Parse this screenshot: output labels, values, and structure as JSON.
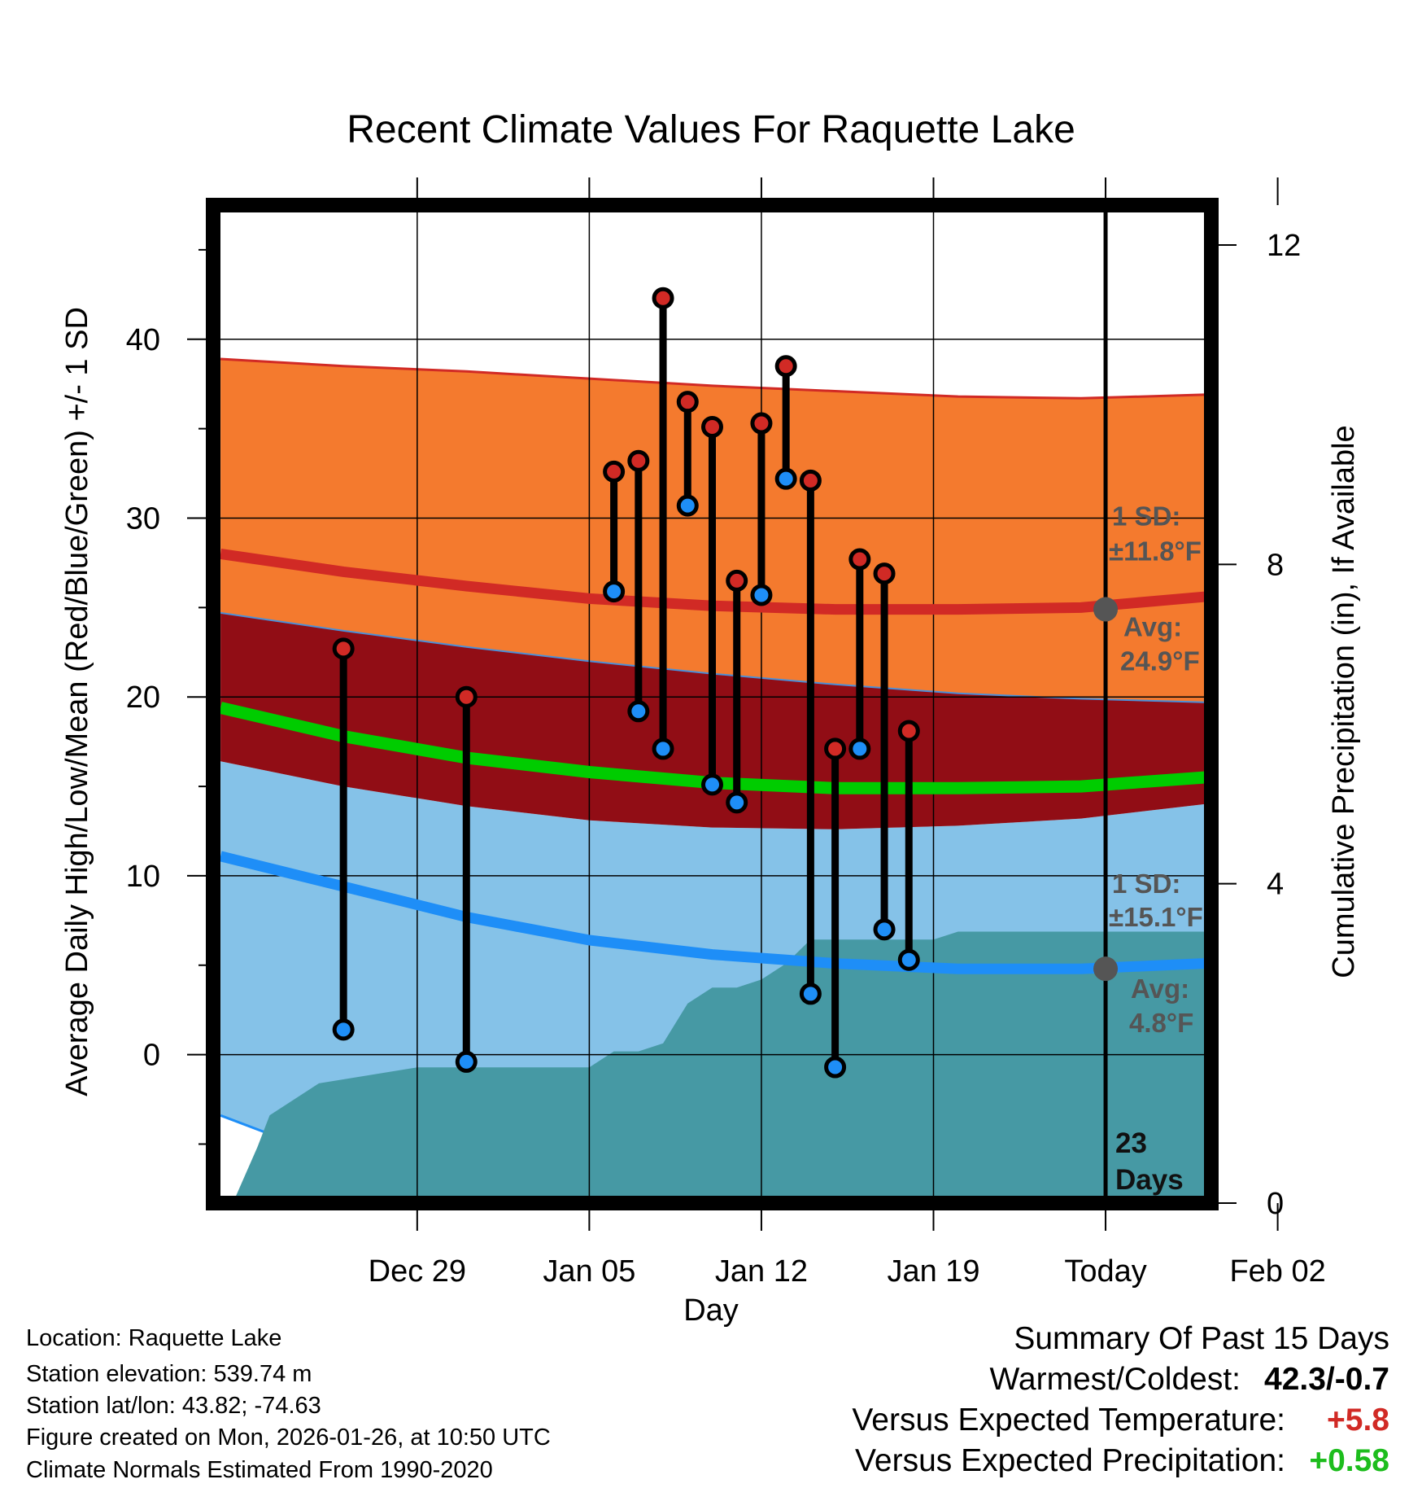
{
  "chart_data": {
    "type": "line",
    "title": "Recent Climate Values For Raquette Lake",
    "xlabel": "Day",
    "ylabel_left": "Average Daily High/Low/Mean (Red/Blue/Green) +/- 1 SD",
    "ylabel_right": "Cumulative Precipitation (in), If Available",
    "x_domain_days": [
      -5.3,
      35.3
    ],
    "ylim": [
      -8.3,
      47.5
    ],
    "precip_ylim": [
      0,
      12.5
    ],
    "x_ticks": [
      {
        "day": 3,
        "label": "Dec 29"
      },
      {
        "day": 10,
        "label": "Jan 05"
      },
      {
        "day": 17,
        "label": "Jan 12"
      },
      {
        "day": 24,
        "label": "Jan 19"
      },
      {
        "day": 31,
        "label": "Today"
      },
      {
        "day": 38,
        "label": "Feb 02"
      }
    ],
    "y_ticks": [
      0,
      10,
      20,
      30,
      40
    ],
    "y_minor_ticks": [
      -5,
      5,
      15,
      25,
      35,
      45
    ],
    "precip_ticks": [
      0,
      4,
      8,
      12
    ],
    "today_day": 31,
    "today_text": "23 Days",
    "normal_high": {
      "days": [
        -5,
        0,
        5,
        10,
        15,
        20,
        25,
        30,
        35,
        40
      ],
      "mean": [
        28.0,
        27.0,
        26.2,
        25.5,
        25.1,
        24.9,
        24.9,
        25.0,
        25.6,
        26.4
      ],
      "upper": [
        38.9,
        38.5,
        38.2,
        37.8,
        37.4,
        37.1,
        36.8,
        36.7,
        36.9,
        37.2
      ],
      "lower": [
        24.7,
        23.7,
        22.8,
        22.0,
        21.3,
        20.7,
        20.2,
        19.9,
        19.7,
        19.6
      ]
    },
    "normal_low": {
      "days": [
        -5,
        0,
        5,
        10,
        15,
        20,
        25,
        30,
        35,
        40
      ],
      "mean": [
        11.1,
        9.4,
        7.7,
        6.4,
        5.6,
        5.1,
        4.8,
        4.8,
        5.1,
        5.6
      ],
      "upper": [
        16.4,
        15.0,
        13.9,
        13.1,
        12.7,
        12.6,
        12.8,
        13.2,
        14.0,
        15.1
      ],
      "lower": [
        -3.4,
        -6.0,
        -8.0,
        -8.5,
        -8.5,
        -8.5,
        -8.5,
        -8.5,
        -8.5,
        -8.5
      ]
    },
    "normal_mean": {
      "days": [
        -5,
        0,
        5,
        10,
        15,
        20,
        25,
        30,
        35,
        40
      ],
      "values": [
        19.4,
        17.8,
        16.6,
        15.8,
        15.2,
        14.9,
        14.9,
        15.0,
        15.5,
        16.0
      ]
    },
    "observed": {
      "days": [
        0,
        5,
        11,
        12,
        13,
        14,
        15,
        16,
        17,
        18,
        19,
        20,
        21,
        22,
        23,
        24
      ],
      "high": [
        22.7,
        20.0,
        32.6,
        33.2,
        42.3,
        36.5,
        35.1,
        26.5,
        35.3,
        38.5,
        32.1,
        17.1,
        27.7,
        26.9,
        18.1,
        null
      ],
      "low": [
        1.4,
        -0.4,
        25.9,
        19.2,
        17.1,
        30.7,
        15.1,
        14.1,
        25.7,
        32.2,
        3.4,
        -0.7,
        17.1,
        7.0,
        5.3,
        null
      ]
    },
    "precipitation": {
      "days": [
        -4.5,
        -3.5,
        -3,
        -1,
        3,
        7,
        8,
        10,
        11,
        12,
        13,
        14,
        15,
        16,
        17,
        18,
        19,
        20,
        21,
        22,
        23,
        24,
        25,
        26,
        27,
        28,
        29,
        30,
        31,
        32,
        33,
        34,
        35
      ],
      "values": [
        0,
        0.7,
        1.1,
        1.5,
        1.7,
        1.7,
        1.7,
        1.7,
        1.9,
        1.9,
        2.0,
        2.5,
        2.7,
        2.7,
        2.8,
        3.0,
        3.3,
        3.3,
        3.3,
        3.3,
        3.3,
        3.3,
        3.4,
        3.4,
        3.4,
        3.4,
        3.4,
        3.4,
        3.4,
        3.4,
        3.4,
        3.4,
        3.4
      ]
    },
    "annotations": {
      "high_sd_label": "1 SD:",
      "high_sd_value": "±11.8°F",
      "high_avg_label": "Avg:",
      "high_avg_value": "24.9°F",
      "low_sd_label": "1 SD:",
      "low_sd_value": "±15.1°F",
      "low_avg_label": "Avg:",
      "low_avg_value": "4.8°F",
      "high_today_avg": 24.9,
      "low_today_avg": 4.8
    },
    "colors": {
      "high_band": "#f47a2e",
      "overlap_band": "#910d15",
      "low_band": "#85c2e8",
      "high_line": "#d12a25",
      "low_line": "#1e8ef7",
      "mean_line": "#00cc00",
      "precip": "#4699a4",
      "high_dot": "#d12a25",
      "low_dot": "#1e8ef7",
      "annotation": "#555555"
    }
  },
  "info": {
    "location": "Location: Raquette Lake",
    "elevation": "Station elevation: 539.74 m",
    "latlon": "Station lat/lon: 43.82; -74.63",
    "created": "Figure created on Mon, 2026-01-26, at 10:50 UTC",
    "normals": "Climate Normals Estimated From 1990-2020"
  },
  "summary": {
    "title": "Summary Of Past 15 Days",
    "warm_cold_label": "Warmest/Coldest:",
    "warm_cold_value": "42.3/-0.7",
    "temp_label": "Versus Expected Temperature:",
    "temp_value": "+5.8",
    "temp_color": "#d12a25",
    "precip_label": "Versus Expected Precipitation:",
    "precip_value": "+0.58",
    "precip_color": "#1dbd1d"
  }
}
